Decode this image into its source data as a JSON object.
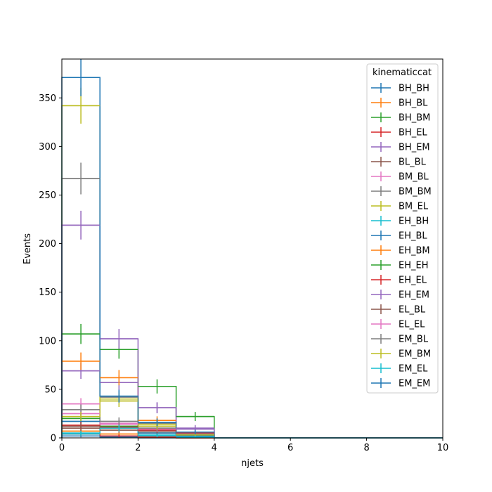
{
  "chart_data": {
    "type": "histogram",
    "xlabel": "njets",
    "ylabel": "Events",
    "xlim": [
      0,
      10
    ],
    "ylim": [
      0,
      390
    ],
    "xticks": [
      0,
      2,
      4,
      6,
      8,
      10
    ],
    "yticks": [
      0,
      50,
      100,
      150,
      200,
      250,
      300,
      350
    ],
    "bin_edges": [
      0,
      1,
      2,
      3,
      4,
      5,
      6,
      7,
      8,
      9,
      10
    ],
    "grid": false,
    "legend": {
      "title": "kinematiccat",
      "placement": "top-right"
    },
    "series": [
      {
        "name": "BH_BH",
        "color": "#1f77b4",
        "values": [
          2,
          1,
          0,
          0,
          0,
          0,
          0,
          0,
          0,
          0
        ],
        "errors": [
          1.4,
          1.0,
          0,
          0,
          0,
          0,
          0,
          0,
          0,
          0
        ]
      },
      {
        "name": "BH_BL",
        "color": "#ff7f0e",
        "values": [
          7,
          4,
          1,
          0,
          0,
          0,
          0,
          0,
          0,
          0
        ],
        "errors": [
          2.6,
          2.0,
          1.0,
          0,
          0,
          0,
          0,
          0,
          0,
          0
        ]
      },
      {
        "name": "BH_BM",
        "color": "#2ca02c",
        "values": [
          20,
          12,
          5,
          1,
          0,
          0,
          0,
          0,
          0,
          0
        ],
        "errors": [
          4.5,
          3.5,
          2.2,
          1.0,
          0,
          0,
          0,
          0,
          0,
          0
        ]
      },
      {
        "name": "BH_EL",
        "color": "#d62728",
        "values": [
          4,
          2,
          1,
          0,
          0,
          0,
          0,
          0,
          0,
          0
        ],
        "errors": [
          2.0,
          1.4,
          1.0,
          0,
          0,
          0,
          0,
          0,
          0,
          0
        ]
      },
      {
        "name": "BH_EM",
        "color": "#9467bd",
        "values": [
          69,
          57,
          31,
          10,
          0,
          0,
          0,
          0,
          0,
          0
        ],
        "errors": [
          8.3,
          7.5,
          5.6,
          3.2,
          0,
          0,
          0,
          0,
          0,
          0
        ]
      },
      {
        "name": "BL_BL",
        "color": "#8c564b",
        "values": [
          10,
          8,
          5,
          1,
          0,
          0,
          0,
          0,
          0,
          0
        ],
        "errors": [
          3.2,
          2.8,
          2.2,
          1.0,
          0,
          0,
          0,
          0,
          0,
          0
        ]
      },
      {
        "name": "BM_BL",
        "color": "#e377c2",
        "values": [
          25,
          14,
          7,
          2,
          0,
          0,
          0,
          0,
          0,
          0
        ],
        "errors": [
          5.0,
          3.7,
          2.6,
          1.4,
          0,
          0,
          0,
          0,
          0,
          0
        ]
      },
      {
        "name": "BM_BM",
        "color": "#7f7f7f",
        "values": [
          267,
          42,
          15,
          3,
          0,
          0,
          0,
          0,
          0,
          0
        ],
        "errors": [
          16.3,
          6.5,
          3.9,
          1.7,
          0,
          0,
          0,
          0,
          0,
          0
        ]
      },
      {
        "name": "BM_EL",
        "color": "#bcbd22",
        "values": [
          342,
          38,
          14,
          3,
          0,
          0,
          0,
          0,
          0,
          0
        ],
        "errors": [
          18.5,
          6.2,
          3.7,
          1.7,
          0,
          0,
          0,
          0,
          0,
          0
        ]
      },
      {
        "name": "EH_BH",
        "color": "#17becf",
        "values": [
          5,
          10,
          2,
          1,
          0,
          0,
          0,
          0,
          0,
          0
        ],
        "errors": [
          2.2,
          3.2,
          1.4,
          1.0,
          0,
          0,
          0,
          0,
          0,
          0
        ]
      },
      {
        "name": "EH_BL",
        "color": "#1f77b4",
        "values": [
          17,
          15,
          5,
          2,
          0,
          0,
          0,
          0,
          0,
          0
        ],
        "errors": [
          4.1,
          3.9,
          2.2,
          1.4,
          0,
          0,
          0,
          0,
          0,
          0
        ]
      },
      {
        "name": "EH_BM",
        "color": "#ff7f0e",
        "values": [
          79,
          62,
          18,
          6,
          0,
          0,
          0,
          0,
          0,
          0
        ],
        "errors": [
          8.9,
          7.9,
          4.2,
          2.4,
          0,
          0,
          0,
          0,
          0,
          0
        ]
      },
      {
        "name": "EH_EH",
        "color": "#2ca02c",
        "values": [
          107,
          91,
          53,
          22,
          0,
          0,
          0,
          0,
          0,
          0
        ],
        "errors": [
          10.3,
          9.5,
          7.3,
          4.7,
          0,
          0,
          0,
          0,
          0,
          0
        ]
      },
      {
        "name": "EH_EL",
        "color": "#d62728",
        "values": [
          13,
          11,
          8,
          5,
          0,
          0,
          0,
          0,
          0,
          0
        ],
        "errors": [
          3.6,
          3.3,
          2.8,
          2.2,
          0,
          0,
          0,
          0,
          0,
          0
        ]
      },
      {
        "name": "EH_EM",
        "color": "#9467bd",
        "values": [
          219,
          102,
          31,
          9,
          0,
          0,
          0,
          0,
          0,
          0
        ],
        "errors": [
          14.8,
          10.1,
          5.6,
          3.0,
          0,
          0,
          0,
          0,
          0,
          0
        ]
      },
      {
        "name": "EL_BL",
        "color": "#8c564b",
        "values": [
          12,
          10,
          7,
          3,
          0,
          0,
          0,
          0,
          0,
          0
        ],
        "errors": [
          3.5,
          3.2,
          2.6,
          1.7,
          0,
          0,
          0,
          0,
          0,
          0
        ]
      },
      {
        "name": "EL_EL",
        "color": "#e377c2",
        "values": [
          35,
          15,
          9,
          4,
          0,
          0,
          0,
          0,
          0,
          0
        ],
        "errors": [
          5.9,
          3.9,
          3.0,
          2.0,
          0,
          0,
          0,
          0,
          0,
          0
        ]
      },
      {
        "name": "EM_BL",
        "color": "#7f7f7f",
        "values": [
          29,
          17,
          10,
          4,
          0,
          0,
          0,
          0,
          0,
          0
        ],
        "errors": [
          5.4,
          4.1,
          3.2,
          2.0,
          0,
          0,
          0,
          0,
          0,
          0
        ]
      },
      {
        "name": "EM_BM",
        "color": "#bcbd22",
        "values": [
          22,
          40,
          12,
          3,
          0,
          0,
          0,
          0,
          0,
          0
        ],
        "errors": [
          4.7,
          6.3,
          3.5,
          1.7,
          0,
          0,
          0,
          0,
          0,
          0
        ]
      },
      {
        "name": "EM_EL",
        "color": "#17becf",
        "values": [
          4,
          10,
          3,
          1,
          0,
          0,
          0,
          0,
          0,
          0
        ],
        "errors": [
          2.0,
          3.2,
          1.7,
          1.0,
          0,
          0,
          0,
          0,
          0,
          0
        ]
      },
      {
        "name": "EM_EM",
        "color": "#1f77b4",
        "values": [
          371,
          43,
          16,
          6,
          0,
          0,
          0,
          0,
          0,
          0
        ],
        "errors": [
          19.3,
          6.6,
          4.0,
          2.4,
          0,
          0,
          0,
          0,
          0,
          0
        ]
      }
    ]
  }
}
